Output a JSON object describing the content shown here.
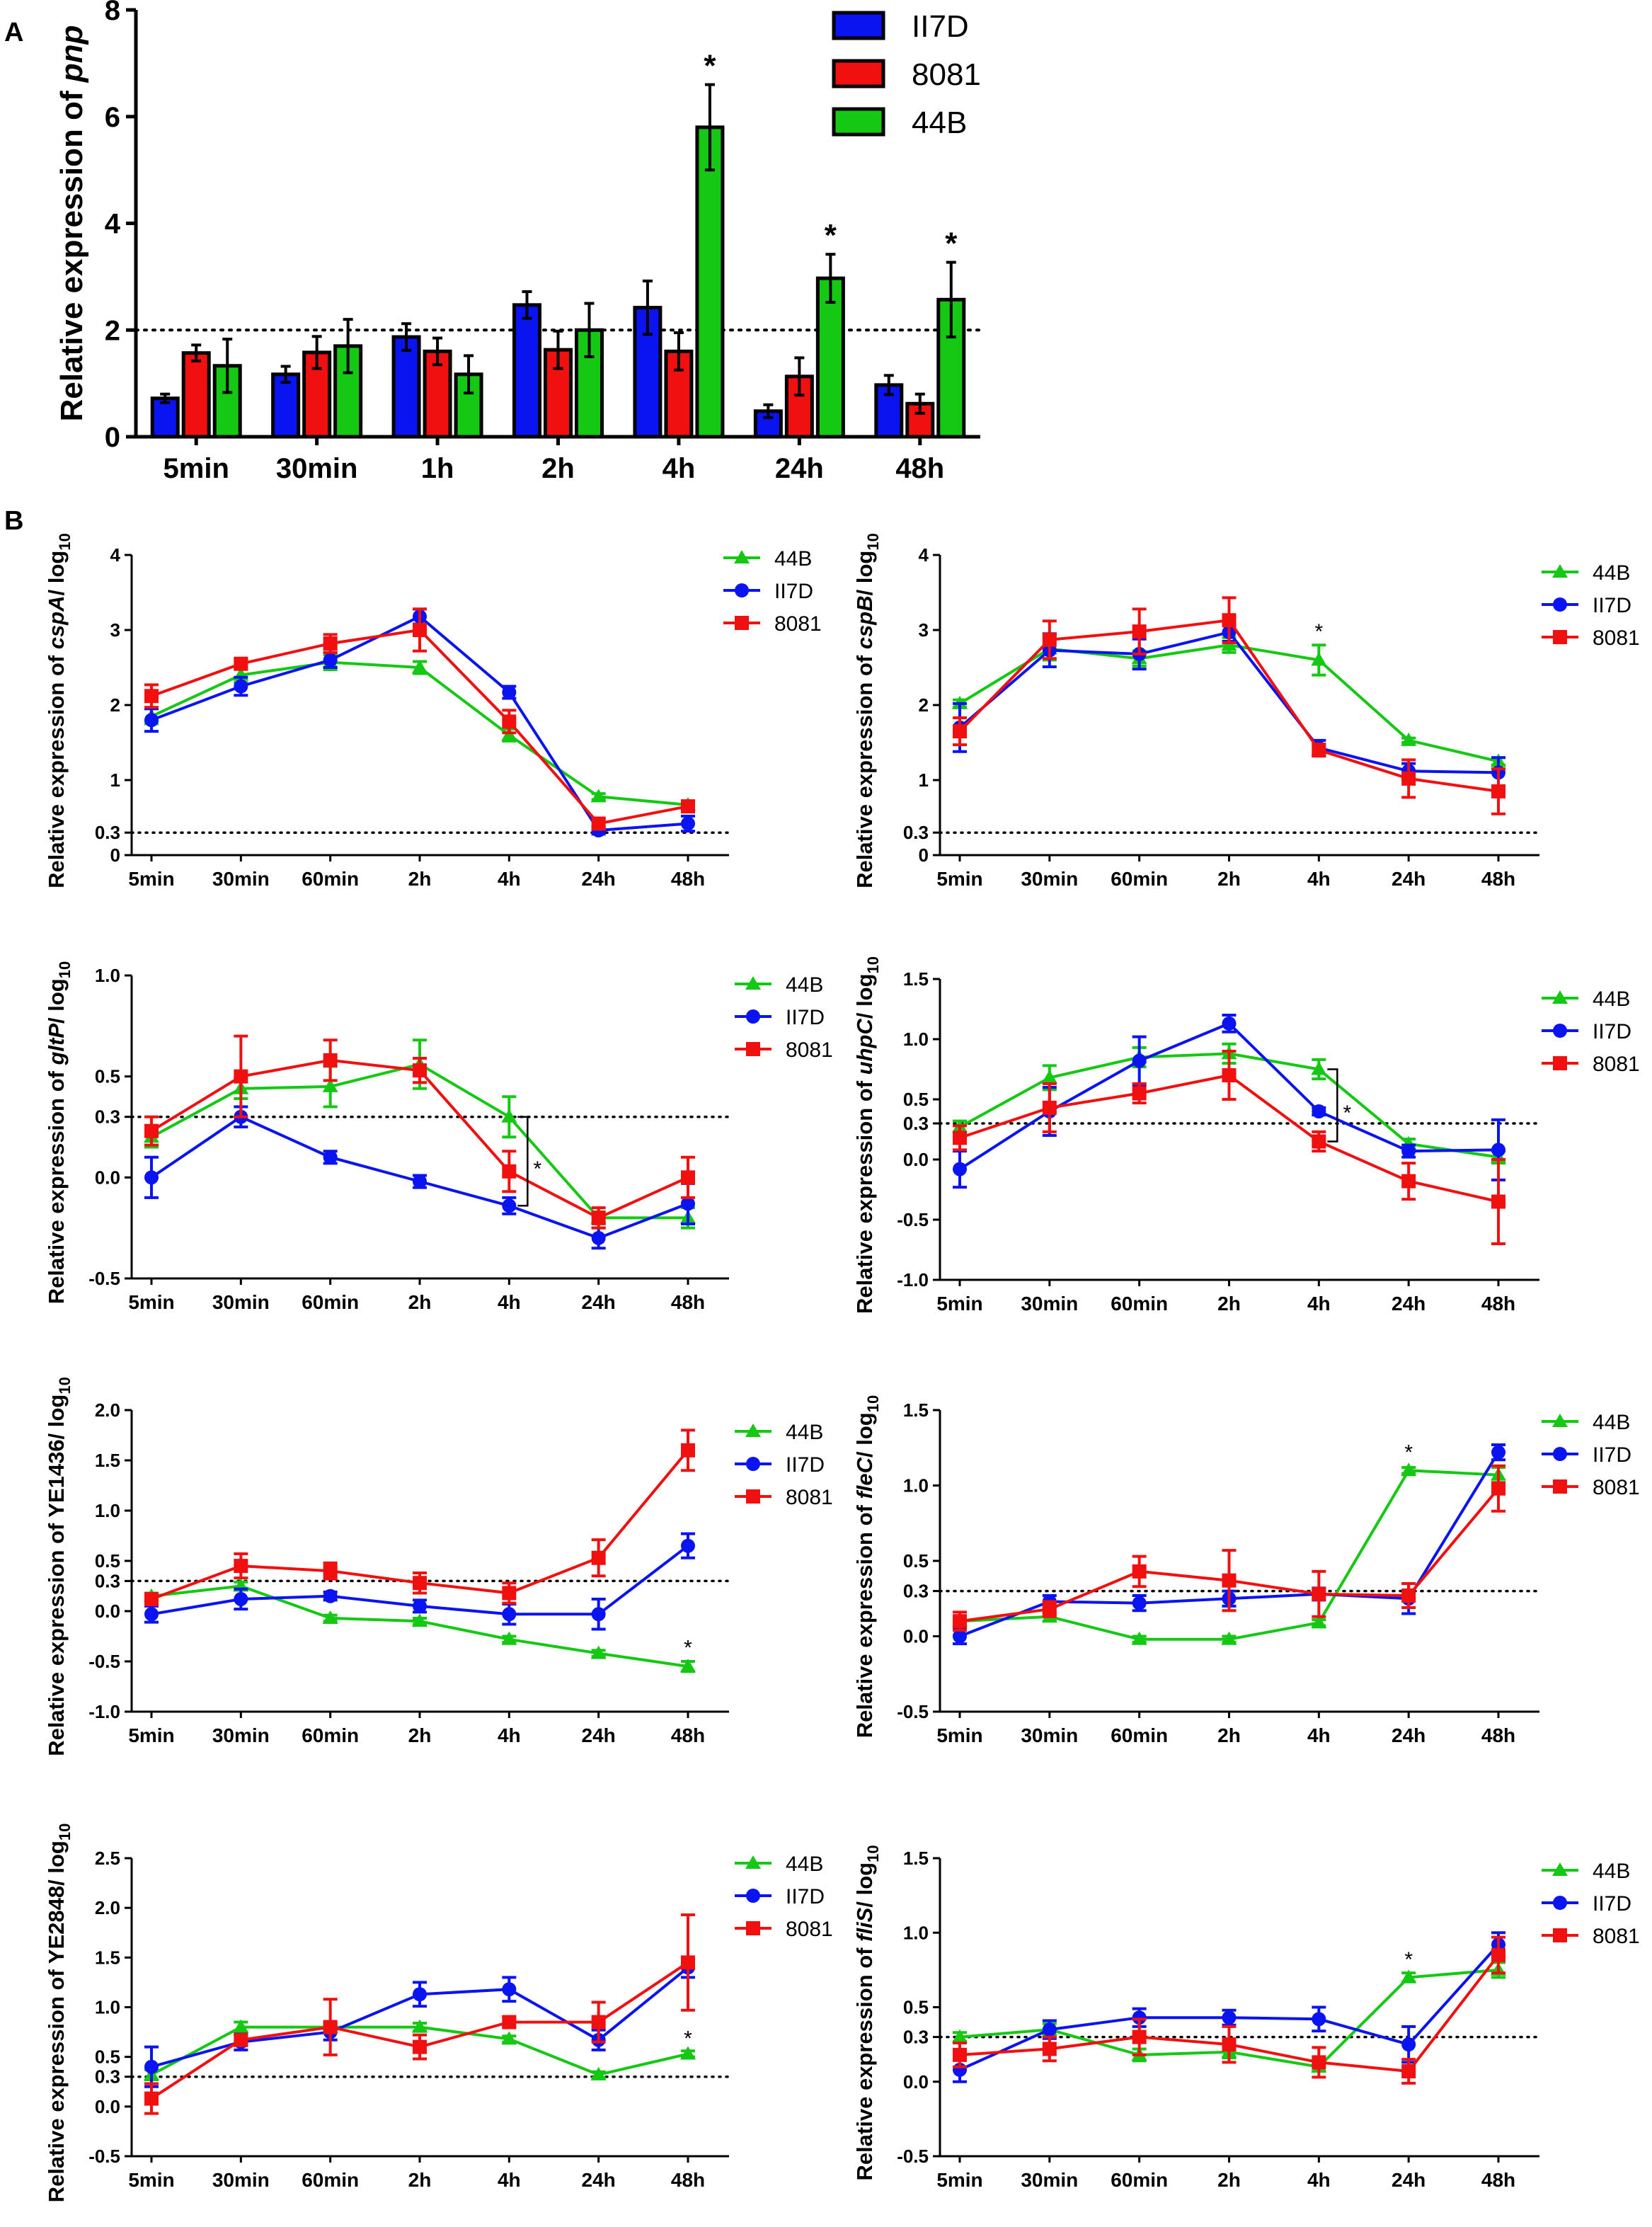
{
  "panels": {
    "a": "A",
    "b": "B"
  },
  "colors": {
    "ii7d": "#0a14f0",
    "8081": "#f01010",
    "44b": "#14c814",
    "axis": "#000000"
  },
  "chart_data": [
    {
      "type": "bar",
      "title": "",
      "ylabel_prefix": "Relative expression of ",
      "ylabel_gene": "pnp",
      "xlabel": "",
      "ylim": [
        0,
        8
      ],
      "yticks": [
        0,
        2,
        4,
        6,
        8
      ],
      "threshold": 2,
      "legend_position": "top-right",
      "categories": [
        "5min",
        "30min",
        "1h",
        "2h",
        "4h",
        "24h",
        "48h"
      ],
      "series": [
        {
          "name": "II7D",
          "color": "#0a14f0",
          "values": [
            0.72,
            1.17,
            1.87,
            2.47,
            2.42,
            0.48,
            0.97
          ],
          "errors": [
            0.08,
            0.15,
            0.25,
            0.25,
            0.5,
            0.12,
            0.18
          ]
        },
        {
          "name": "8081",
          "color": "#f01010",
          "values": [
            1.57,
            1.58,
            1.6,
            1.63,
            1.6,
            1.13,
            0.62
          ],
          "errors": [
            0.15,
            0.3,
            0.25,
            0.35,
            0.35,
            0.35,
            0.18
          ]
        },
        {
          "name": "44B",
          "color": "#14c814",
          "values": [
            1.33,
            1.7,
            1.17,
            2.0,
            5.8,
            2.97,
            2.57
          ],
          "errors": [
            0.5,
            0.5,
            0.35,
            0.5,
            0.8,
            0.45,
            0.7
          ]
        }
      ],
      "annotations": [
        {
          "category": "4h",
          "series": "44B",
          "text": "*"
        },
        {
          "category": "24h",
          "series": "44B",
          "text": "*"
        },
        {
          "category": "48h",
          "series": "44B",
          "text": "*"
        }
      ]
    },
    {
      "type": "line",
      "ylabel_prefix": "Relative expression of ",
      "ylabel_gene": "cspA",
      "ylabel_suffix": "/ log",
      "ylabel_sub": "10",
      "ylim": [
        0,
        4
      ],
      "ytick_values": [
        0,
        0.3,
        1,
        2,
        3,
        4
      ],
      "ytick_labels": [
        "0",
        "0.3",
        "1",
        "2",
        "3",
        "4"
      ],
      "threshold": 0.3,
      "categories": [
        "5min",
        "30min",
        "60min",
        "2h",
        "4h",
        "24h",
        "48h"
      ],
      "series": [
        {
          "name": "44B",
          "color": "#14c814",
          "marker": "triangle",
          "values": [
            1.85,
            2.4,
            2.57,
            2.5,
            1.6,
            0.78,
            0.67
          ],
          "errors": [
            0.1,
            0.1,
            0.1,
            0.08,
            0.08,
            0.04,
            0.04
          ]
        },
        {
          "name": "II7D",
          "color": "#0a14f0",
          "marker": "circle",
          "values": [
            1.8,
            2.25,
            2.6,
            3.18,
            2.17,
            0.33,
            0.42
          ],
          "errors": [
            0.15,
            0.12,
            0.1,
            0.1,
            0.08,
            0.05,
            0.1
          ]
        },
        {
          "name": "8081",
          "color": "#f01010",
          "marker": "square",
          "values": [
            2.12,
            2.55,
            2.82,
            3.0,
            1.78,
            0.42,
            0.65
          ],
          "errors": [
            0.15,
            0.06,
            0.12,
            0.28,
            0.15,
            0.06,
            0.05
          ]
        }
      ],
      "annotations": []
    },
    {
      "type": "line",
      "ylabel_prefix": "Relative expression of ",
      "ylabel_gene": "cspB",
      "ylabel_suffix": "/ log",
      "ylabel_sub": "10",
      "ylim": [
        0,
        4
      ],
      "ytick_values": [
        0,
        0.3,
        1,
        2,
        3,
        4
      ],
      "ytick_labels": [
        "0",
        "0.3",
        "1",
        "2",
        "3",
        "4"
      ],
      "threshold": 0.3,
      "categories": [
        "5min",
        "30min",
        "60min",
        "2h",
        "4h",
        "24h",
        "48h"
      ],
      "series": [
        {
          "name": "44B",
          "color": "#14c814",
          "marker": "triangle",
          "values": [
            2.02,
            2.75,
            2.62,
            2.8,
            2.6,
            1.53,
            1.25
          ],
          "errors": [
            0.05,
            0.15,
            0.1,
            0.1,
            0.2,
            0.03,
            0.05
          ]
        },
        {
          "name": "II7D",
          "color": "#0a14f0",
          "marker": "circle",
          "values": [
            1.7,
            2.73,
            2.68,
            2.97,
            1.43,
            1.12,
            1.1
          ],
          "errors": [
            0.32,
            0.22,
            0.2,
            0.12,
            0.1,
            0.1,
            0.2
          ]
        },
        {
          "name": "8081",
          "color": "#f01010",
          "marker": "square",
          "values": [
            1.65,
            2.87,
            2.98,
            3.13,
            1.4,
            1.02,
            0.85
          ],
          "errors": [
            0.18,
            0.25,
            0.3,
            0.3,
            0.08,
            0.25,
            0.3
          ]
        }
      ],
      "annotations": [
        {
          "category": "4h",
          "text": "*",
          "value": 3.0
        }
      ]
    },
    {
      "type": "line",
      "ylabel_prefix": "Relative expression of ",
      "ylabel_gene": "gltP",
      "ylabel_suffix": "/ log",
      "ylabel_sub": "10",
      "ylim": [
        -0.5,
        1.0
      ],
      "ytick_values": [
        -0.5,
        0.0,
        0.3,
        0.5,
        1.0
      ],
      "ytick_labels": [
        "-0.5",
        "0.0",
        "0.3",
        "0.5",
        "1.0"
      ],
      "threshold": 0.3,
      "categories": [
        "5min",
        "30min",
        "60min",
        "2h",
        "4h",
        "24h",
        "48h"
      ],
      "series": [
        {
          "name": "44B",
          "color": "#14c814",
          "marker": "triangle",
          "values": [
            0.2,
            0.44,
            0.45,
            0.56,
            0.3,
            -0.2,
            -0.2
          ],
          "errors": [
            0.05,
            0.05,
            0.1,
            0.12,
            0.1,
            0.03,
            0.05
          ]
        },
        {
          "name": "II7D",
          "color": "#0a14f0",
          "marker": "circle",
          "values": [
            0.0,
            0.3,
            0.1,
            -0.02,
            -0.14,
            -0.3,
            -0.13
          ],
          "errors": [
            0.1,
            0.05,
            0.03,
            0.03,
            0.04,
            0.05,
            0.1
          ]
        },
        {
          "name": "8081",
          "color": "#f01010",
          "marker": "square",
          "values": [
            0.23,
            0.5,
            0.58,
            0.53,
            0.03,
            -0.2,
            0.0
          ],
          "errors": [
            0.07,
            0.2,
            0.1,
            0.06,
            0.1,
            0.05,
            0.1
          ]
        }
      ],
      "annotations": [
        {
          "category": "4h",
          "text": "*",
          "bracket": [
            0.3,
            -0.14
          ],
          "value": 0.05
        }
      ]
    },
    {
      "type": "line",
      "ylabel_prefix": "Relative expression of ",
      "ylabel_gene": "uhpC",
      "ylabel_suffix": "/ log",
      "ylabel_sub": "10",
      "ylim": [
        -1.0,
        1.5
      ],
      "ytick_values": [
        -1.0,
        -0.5,
        0.0,
        0.3,
        0.5,
        1.0,
        1.5
      ],
      "ytick_labels": [
        "-1.0",
        "-0.5",
        "0.0",
        "0.3",
        "0.5",
        "1.0",
        "1.5"
      ],
      "threshold": 0.3,
      "categories": [
        "5min",
        "30min",
        "60min",
        "2h",
        "4h",
        "24h",
        "48h"
      ],
      "series": [
        {
          "name": "44B",
          "color": "#14c814",
          "marker": "triangle",
          "values": [
            0.27,
            0.68,
            0.85,
            0.88,
            0.75,
            0.13,
            0.02
          ],
          "errors": [
            0.05,
            0.1,
            0.08,
            0.08,
            0.08,
            0.04,
            0.05
          ]
        },
        {
          "name": "II7D",
          "color": "#0a14f0",
          "marker": "circle",
          "values": [
            -0.08,
            0.4,
            0.82,
            1.13,
            0.4,
            0.07,
            0.08
          ],
          "errors": [
            0.15,
            0.2,
            0.2,
            0.07,
            0.03,
            0.05,
            0.25
          ]
        },
        {
          "name": "8081",
          "color": "#f01010",
          "marker": "square",
          "values": [
            0.18,
            0.43,
            0.55,
            0.7,
            0.15,
            -0.18,
            -0.35
          ],
          "errors": [
            0.1,
            0.2,
            0.08,
            0.2,
            0.08,
            0.15,
            0.35
          ]
        }
      ],
      "annotations": [
        {
          "category": "4h",
          "text": "*",
          "bracket": [
            0.75,
            0.15
          ],
          "value": 0.4
        }
      ]
    },
    {
      "type": "line",
      "ylabel_prefix": "Relative expression of YE1436/ log",
      "ylabel_gene": "",
      "ylabel_suffix": "",
      "ylabel_sub": "10",
      "ylim": [
        -1.0,
        2.0
      ],
      "ytick_values": [
        -1.0,
        -0.5,
        0.0,
        0.3,
        0.5,
        1.0,
        1.5,
        2.0
      ],
      "ytick_labels": [
        "-1.0",
        "-0.5",
        "0.0",
        "0.3",
        "0.5",
        "1.0",
        "1.5",
        "2.0"
      ],
      "threshold": 0.3,
      "categories": [
        "5min",
        "30min",
        "60min",
        "2h",
        "4h",
        "24h",
        "48h"
      ],
      "series": [
        {
          "name": "44B",
          "color": "#14c814",
          "marker": "triangle",
          "values": [
            0.15,
            0.25,
            -0.07,
            -0.1,
            -0.28,
            -0.42,
            -0.55
          ],
          "errors": [
            0.03,
            0.04,
            0.03,
            0.03,
            0.03,
            0.03,
            0.05
          ]
        },
        {
          "name": "II7D",
          "color": "#0a14f0",
          "marker": "circle",
          "values": [
            -0.03,
            0.12,
            0.15,
            0.05,
            -0.03,
            -0.03,
            0.65
          ],
          "errors": [
            0.08,
            0.1,
            0.04,
            0.06,
            0.1,
            0.15,
            0.12
          ]
        },
        {
          "name": "8081",
          "color": "#f01010",
          "marker": "square",
          "values": [
            0.12,
            0.45,
            0.4,
            0.28,
            0.18,
            0.53,
            1.6
          ],
          "errors": [
            0.05,
            0.12,
            0.08,
            0.1,
            0.1,
            0.18,
            0.2
          ]
        }
      ],
      "annotations": [
        {
          "category": "48h",
          "text": "*",
          "value": -0.35
        }
      ]
    },
    {
      "type": "line",
      "ylabel_prefix": "Relative expression of ",
      "ylabel_gene": "fleC",
      "ylabel_suffix": "/ log",
      "ylabel_sub": "10",
      "ylim": [
        -0.5,
        1.5
      ],
      "ytick_values": [
        -0.5,
        0.0,
        0.3,
        0.5,
        1.0,
        1.5
      ],
      "ytick_labels": [
        "-0.5",
        "0.0",
        "0.3",
        "0.5",
        "1.0",
        "1.5"
      ],
      "threshold": 0.3,
      "categories": [
        "5min",
        "30min",
        "60min",
        "2h",
        "4h",
        "24h",
        "48h"
      ],
      "series": [
        {
          "name": "44B",
          "color": "#14c814",
          "marker": "triangle",
          "values": [
            0.1,
            0.13,
            -0.02,
            -0.02,
            0.09,
            1.1,
            1.07
          ],
          "errors": [
            0.03,
            0.03,
            0.02,
            0.02,
            0.02,
            0.02,
            0.05
          ]
        },
        {
          "name": "II7D",
          "color": "#0a14f0",
          "marker": "circle",
          "values": [
            0.0,
            0.23,
            0.22,
            0.25,
            0.28,
            0.25,
            1.22
          ],
          "errors": [
            0.05,
            0.04,
            0.05,
            0.05,
            0.04,
            0.1,
            0.05
          ]
        },
        {
          "name": "8081",
          "color": "#f01010",
          "marker": "square",
          "values": [
            0.1,
            0.18,
            0.43,
            0.37,
            0.28,
            0.27,
            0.98
          ],
          "errors": [
            0.06,
            0.05,
            0.1,
            0.2,
            0.15,
            0.08,
            0.15
          ]
        }
      ],
      "annotations": [
        {
          "category": "24h",
          "text": "*",
          "value": 1.23
        }
      ]
    },
    {
      "type": "line",
      "ylabel_prefix": "Relative expression of YE2848/ log",
      "ylabel_gene": "",
      "ylabel_suffix": "",
      "ylabel_sub": "10",
      "ylim": [
        -0.5,
        2.5
      ],
      "ytick_values": [
        -0.5,
        0.0,
        0.3,
        0.5,
        1.0,
        1.5,
        2.0,
        2.5
      ],
      "ytick_labels": [
        "-0.5",
        "0.0",
        "0.3",
        "0.5",
        "1.0",
        "1.5",
        "2.0",
        "2.5"
      ],
      "threshold": 0.3,
      "categories": [
        "5min",
        "30min",
        "60min",
        "2h",
        "4h",
        "24h",
        "48h"
      ],
      "series": [
        {
          "name": "44B",
          "color": "#14c814",
          "marker": "triangle",
          "values": [
            0.32,
            0.8,
            0.8,
            0.8,
            0.68,
            0.32,
            0.53
          ],
          "errors": [
            0.05,
            0.05,
            0.04,
            0.04,
            0.03,
            0.03,
            0.03
          ]
        },
        {
          "name": "II7D",
          "color": "#0a14f0",
          "marker": "circle",
          "values": [
            0.4,
            0.65,
            0.75,
            1.13,
            1.18,
            0.67,
            1.4
          ],
          "errors": [
            0.2,
            0.08,
            0.08,
            0.12,
            0.12,
            0.1,
            0.1
          ]
        },
        {
          "name": "8081",
          "color": "#f01010",
          "marker": "square",
          "values": [
            0.08,
            0.67,
            0.8,
            0.6,
            0.85,
            0.85,
            1.45
          ],
          "errors": [
            0.15,
            0.05,
            0.28,
            0.12,
            0.05,
            0.2,
            0.48
          ]
        }
      ],
      "annotations": [
        {
          "category": "48h",
          "text": "*",
          "value": 0.7
        }
      ]
    },
    {
      "type": "line",
      "ylabel_prefix": "Relative expression of ",
      "ylabel_gene": "fliS",
      "ylabel_suffix": "/ log",
      "ylabel_sub": "10",
      "ylim": [
        -0.5,
        1.5
      ],
      "ytick_values": [
        -0.5,
        0.0,
        0.3,
        0.5,
        1.0,
        1.5
      ],
      "ytick_labels": [
        "-0.5",
        "0.0",
        "0.3",
        "0.5",
        "1.0",
        "1.5"
      ],
      "threshold": 0.3,
      "categories": [
        "5min",
        "30min",
        "60min",
        "2h",
        "4h",
        "24h",
        "48h"
      ],
      "series": [
        {
          "name": "44B",
          "color": "#14c814",
          "marker": "triangle",
          "values": [
            0.3,
            0.35,
            0.18,
            0.2,
            0.1,
            0.7,
            0.75
          ],
          "errors": [
            0.03,
            0.04,
            0.04,
            0.04,
            0.03,
            0.03,
            0.05
          ]
        },
        {
          "name": "II7D",
          "color": "#0a14f0",
          "marker": "circle",
          "values": [
            0.08,
            0.35,
            0.43,
            0.43,
            0.42,
            0.25,
            0.92
          ],
          "errors": [
            0.08,
            0.06,
            0.06,
            0.05,
            0.08,
            0.12,
            0.08
          ]
        },
        {
          "name": "8081",
          "color": "#f01010",
          "marker": "square",
          "values": [
            0.18,
            0.22,
            0.3,
            0.25,
            0.13,
            0.07,
            0.85
          ],
          "errors": [
            0.08,
            0.08,
            0.12,
            0.12,
            0.1,
            0.08,
            0.12
          ]
        }
      ],
      "annotations": [
        {
          "category": "24h",
          "text": "*",
          "value": 0.83
        }
      ]
    }
  ]
}
